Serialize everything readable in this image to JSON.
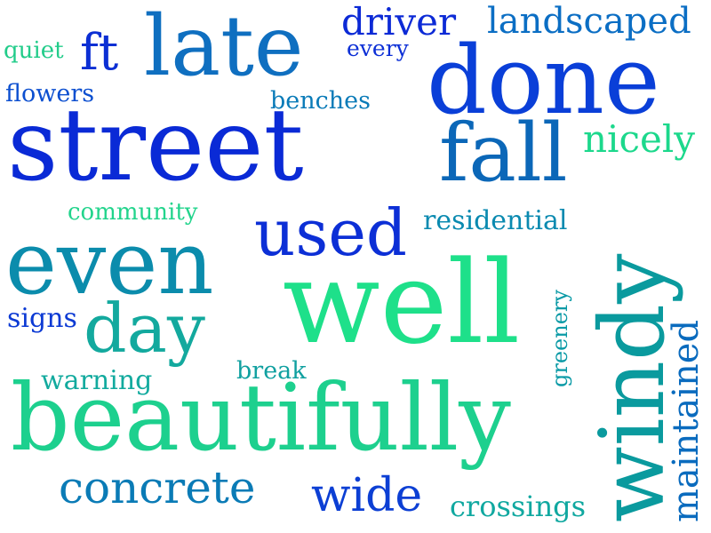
{
  "words": [
    {
      "text": "street",
      "color": "#0a2ad6"
    },
    {
      "text": "done",
      "color": "#0a3fd8"
    },
    {
      "text": "late",
      "color": "#0f6fc0"
    },
    {
      "text": "fall",
      "color": "#0b67b8"
    },
    {
      "text": "well",
      "color": "#1ee08a"
    },
    {
      "text": "even",
      "color": "#0b8cac"
    },
    {
      "text": "used",
      "color": "#0c2fd6"
    },
    {
      "text": "windy",
      "color": "#0a9a9e"
    },
    {
      "text": "day",
      "color": "#13a99e"
    },
    {
      "text": "beautifully",
      "color": "#1dd08e"
    },
    {
      "text": "concrete",
      "color": "#0a7bb6"
    },
    {
      "text": "wide",
      "color": "#0c3fd4"
    },
    {
      "text": "maintained",
      "color": "#0a6bbe"
    },
    {
      "text": "driver",
      "color": "#0c2ad6"
    },
    {
      "text": "landscaped",
      "color": "#0b6ec4"
    },
    {
      "text": "ft",
      "color": "#0c2fd4"
    },
    {
      "text": "nicely",
      "color": "#1cd88c"
    },
    {
      "text": "residential",
      "color": "#0a8ab0"
    },
    {
      "text": "community",
      "color": "#22d48c"
    },
    {
      "text": "benches",
      "color": "#0a7bb8"
    },
    {
      "text": "quiet",
      "color": "#22cc8a"
    },
    {
      "text": "every",
      "color": "#0c2fd6"
    },
    {
      "text": "flowers",
      "color": "#0c4fd0"
    },
    {
      "text": "signs",
      "color": "#0c3ad4"
    },
    {
      "text": "warning",
      "color": "#12aa9e"
    },
    {
      "text": "break",
      "color": "#10a0a0"
    },
    {
      "text": "greenery",
      "color": "#0a9aa6"
    },
    {
      "text": "crossings",
      "color": "#10a8a0"
    }
  ]
}
